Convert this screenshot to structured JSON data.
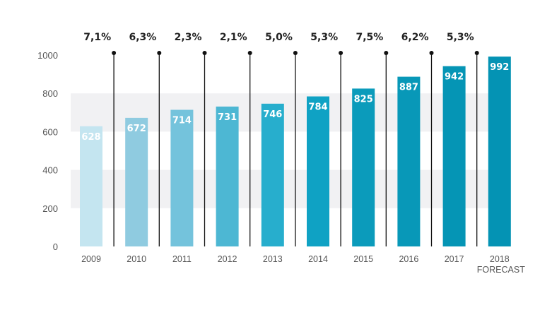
{
  "chart_data": {
    "type": "bar",
    "title": "",
    "xlabel": "",
    "ylabel": "",
    "ylim": [
      0,
      1000
    ],
    "yticks": [
      "0",
      "200",
      "400",
      "600",
      "800",
      "1000"
    ],
    "categories": [
      "2009",
      "2010",
      "2011",
      "2012",
      "2013",
      "2014",
      "2015",
      "2016",
      "2017",
      "2018"
    ],
    "category_sublabels": [
      "",
      "",
      "",
      "",
      "",
      "",
      "",
      "",
      "",
      "FORECAST"
    ],
    "values": [
      628,
      672,
      714,
      731,
      746,
      784,
      825,
      887,
      942,
      992
    ],
    "value_labels": [
      "628",
      "672",
      "714",
      "731",
      "746",
      "784",
      "825",
      "887",
      "942",
      "992"
    ],
    "growth_labels": [
      "7,1%",
      "6,3%",
      "2,3%",
      "2,1%",
      "5,0%",
      "5,3%",
      "7,5%",
      "6,2%",
      "5,3%"
    ],
    "bar_colors": [
      "#c4e5f0",
      "#8fcbe0",
      "#74c3dc",
      "#4db7d3",
      "#27aecd",
      "#0fa2c4",
      "#0b9bbb",
      "#0898b8",
      "#0595b5",
      "#0493b4"
    ],
    "band_color": "#f1f1f3",
    "grid": true
  }
}
